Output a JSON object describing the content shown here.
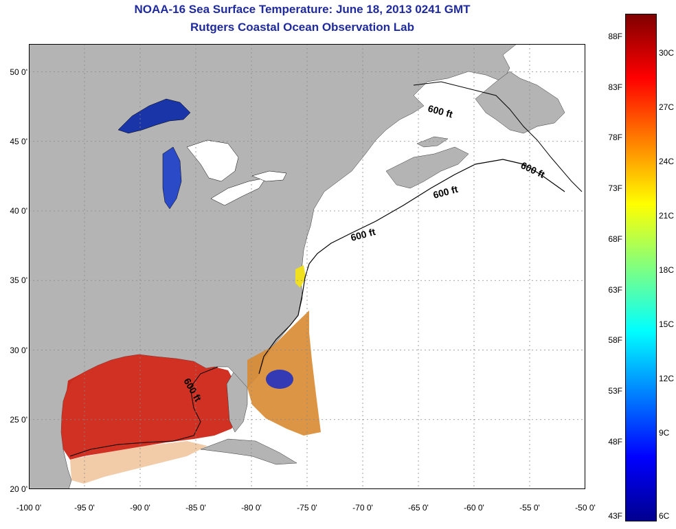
{
  "header": {
    "title": "NOAA-16 Sea Surface Temperature:  June 18, 2013 0241 GMT",
    "subtitle": "Rutgers Coastal Ocean Observation Lab"
  },
  "map": {
    "lon_range": [
      -100,
      -50
    ],
    "lat_range": [
      20,
      52
    ],
    "lat_ticks": [
      "50 0'",
      "45 0'",
      "40 0'",
      "35 0'",
      "30 0'",
      "25 0'",
      "20 0'"
    ],
    "lon_ticks": [
      "-100 0'",
      "-95 0'",
      "-90 0'",
      "-85 0'",
      "-80 0'",
      "-75 0'",
      "-70 0'",
      "-65 0'",
      "-60 0'",
      "-55 0'",
      "-50 0'"
    ],
    "contour_label": "600 ft",
    "colors": {
      "land": "#b4b4b4",
      "ocean_nodata": "#ffffff",
      "grid": "#888888",
      "contour": "#000000"
    }
  },
  "colorbar": {
    "fahrenheit": [
      "88F",
      "83F",
      "78F",
      "73F",
      "68F",
      "63F",
      "58F",
      "53F",
      "48F",
      "43F"
    ],
    "celsius": [
      "30C",
      "27C",
      "24C",
      "21C",
      "18C",
      "15C",
      "12C",
      "9C",
      "6C"
    ],
    "colors": [
      "#7f0000",
      "#ff0000",
      "#ff8000",
      "#ffff00",
      "#80ff80",
      "#00ffff",
      "#0080ff",
      "#0000ff",
      "#00008f"
    ]
  }
}
